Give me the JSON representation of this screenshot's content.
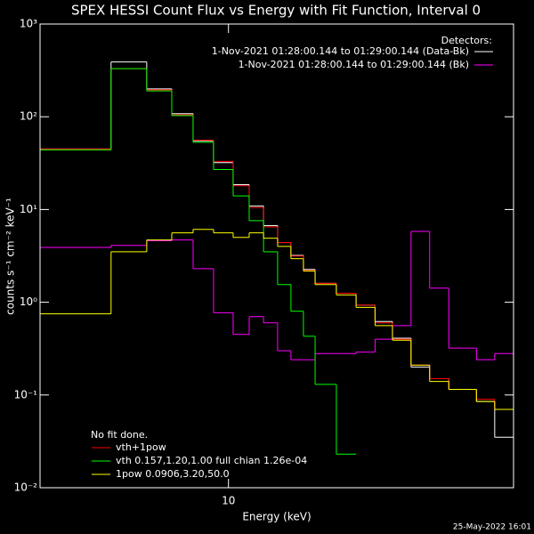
{
  "chart_data": {
    "type": "histogram",
    "title": "SPEX HESSI Count Flux vs Energy with Fit Function, Interval 0",
    "xlabel": "Energy (keV)",
    "ylabel": "counts s⁻¹ cm⁻² keV⁻¹",
    "timestamp": "25-May-2022 16:01",
    "annotation": "No fit done.",
    "legend_title": "Detectors:",
    "xscale": "log",
    "yscale": "log",
    "xlim": [
      4,
      40
    ],
    "ylim": [
      0.01,
      1000
    ],
    "xticks": [
      10
    ],
    "yticks": [
      {
        "value": 1000,
        "label": "10³"
      },
      {
        "value": 100,
        "label": "10²"
      },
      {
        "value": 10,
        "label": "10¹"
      },
      {
        "value": 1,
        "label": "10⁰"
      },
      {
        "value": 0.1,
        "label": "10⁻¹"
      },
      {
        "value": 0.01,
        "label": "10⁻²"
      }
    ],
    "bins": [
      4,
      5.65,
      6.72,
      7.59,
      8.42,
      9.3,
      10.23,
      11.06,
      11.86,
      12.7,
      13.55,
      14.4,
      15.24,
      16.9,
      18.6,
      20.4,
      22.2,
      24.3,
      26.6,
      29.2,
      33.4,
      36.5,
      40
    ],
    "series": [
      {
        "name": "1-Nov-2021 01:28:00.144 to 01:29:00.144 (Data-Bk)",
        "color": "#ffffff",
        "legend": "upper right",
        "values": [
          45,
          390,
          200,
          108,
          55,
          32,
          18.5,
          10.9,
          6.7,
          4.4,
          3.2,
          2.26,
          1.6,
          1.25,
          0.93,
          0.62,
          0.41,
          0.2,
          0.15,
          0.115,
          0.085,
          0.035
        ]
      },
      {
        "name": "1-Nov-2021 01:28:00.144 to 01:29:00.144 (Bk)",
        "color": "#ff00ff",
        "legend": "upper right",
        "values": [
          3.9,
          4.1,
          4.6,
          4.7,
          2.3,
          0.77,
          0.45,
          0.7,
          0.6,
          0.3,
          0.24,
          0.24,
          0.28,
          0.28,
          0.29,
          0.4,
          0.56,
          5.8,
          1.42,
          0.32,
          0.24,
          0.28
        ]
      },
      {
        "name": "vth+1pow",
        "color": "#ff0000",
        "legend": "lower left",
        "values": [
          45,
          330,
          195,
          105,
          56,
          33,
          18,
          10.5,
          6.5,
          4.4,
          3.15,
          2.2,
          1.6,
          1.25,
          0.93,
          0.6,
          0.4,
          0.21,
          0.15,
          0.115,
          0.09,
          0.07
        ]
      },
      {
        "name": "vth 0.157,1.20,1.00  full chian 1.26e-04",
        "color": "#00ff00",
        "legend": "lower left",
        "values": [
          44,
          330,
          190,
          103,
          53,
          27,
          14,
          7.6,
          3.5,
          1.55,
          0.8,
          0.43,
          0.13,
          0.023,
          null,
          null,
          null,
          null,
          null,
          null,
          null,
          null
        ]
      },
      {
        "name": "1pow 0.0906,3.20,50.0",
        "color": "#ffff00",
        "legend": "lower left",
        "values": [
          0.75,
          3.5,
          4.7,
          5.6,
          6.1,
          5.6,
          5.0,
          5.6,
          4.9,
          4.0,
          2.95,
          2.17,
          1.55,
          1.2,
          0.88,
          0.56,
          0.39,
          0.21,
          0.14,
          0.115,
          0.085,
          0.07
        ]
      }
    ]
  }
}
